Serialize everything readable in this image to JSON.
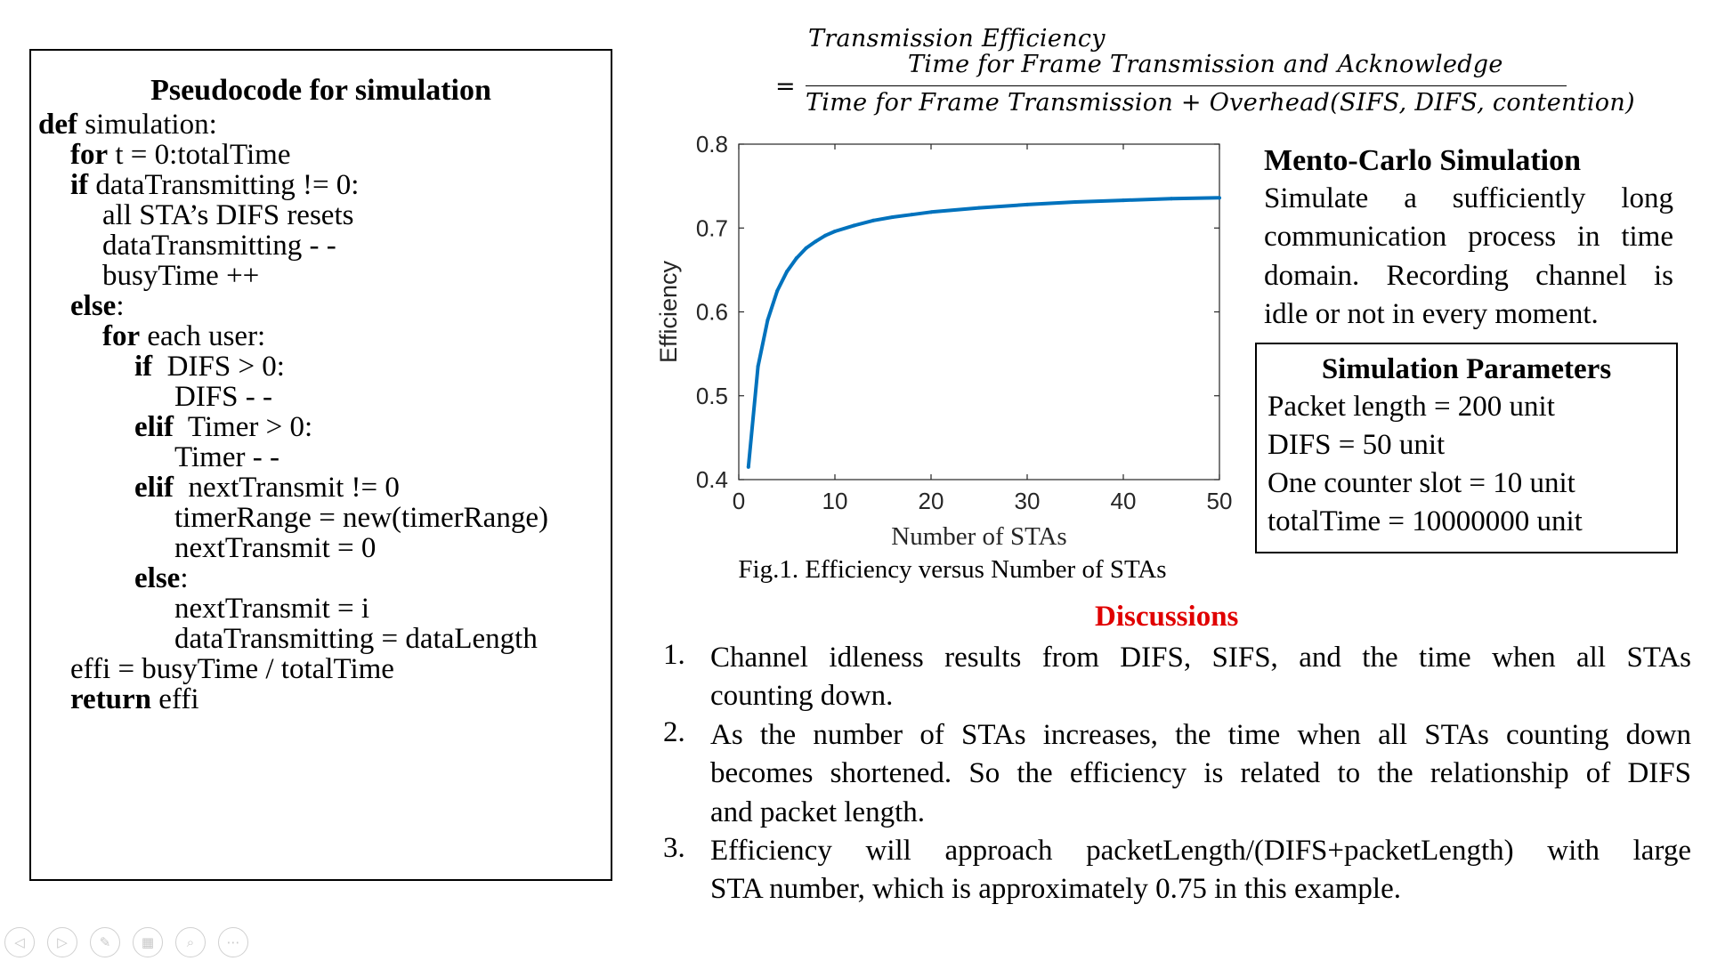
{
  "pseudocode": {
    "title": "Pseudocode for simulation",
    "lines": [
      {
        "kw": "def",
        "text": " simulation:"
      },
      {
        "kw": "for",
        "text": " t = 0:totalTime"
      },
      {
        "kw": "if",
        "text": " dataTransmitting != 0:"
      },
      {
        "kw": "",
        "text": "all STA’s DIFS resets"
      },
      {
        "kw": "",
        "text": "dataTransmitting - -"
      },
      {
        "kw": "",
        "text": "busyTime ++"
      },
      {
        "kw": "else",
        "text": ":"
      },
      {
        "kw": "for",
        "text": " each user:"
      },
      {
        "kw": "if",
        "text": "  DIFS > 0:"
      },
      {
        "kw": "",
        "text": "DIFS - -"
      },
      {
        "kw": "elif",
        "text": "  Timer > 0:"
      },
      {
        "kw": "",
        "text": "Timer - -"
      },
      {
        "kw": "elif",
        "text": "  nextTransmit != 0"
      },
      {
        "kw": "",
        "text": "timerRange = new(timerRange)"
      },
      {
        "kw": "",
        "text": "nextTransmit = 0"
      },
      {
        "kw": "else",
        "text": ":"
      },
      {
        "kw": "",
        "text": "nextTransmit = i"
      },
      {
        "kw": "",
        "text": "dataTransmitting = dataLength"
      },
      {
        "kw": "",
        "text": "effi = busyTime / totalTime"
      },
      {
        "kw": "return",
        "text": " effi"
      }
    ]
  },
  "formula": {
    "lhs": "Transmission Efficiency",
    "equals": "=",
    "numerator": "Time for Frame Transmission and Acknowledge",
    "denominator": "Time for Frame Transmission + Overhead(SIFS, DIFS, contention)"
  },
  "chart_data": {
    "type": "line",
    "xlabel": "Number of STAs",
    "ylabel": "Efficiency",
    "caption": "Fig.1. Efficiency versus Number of STAs",
    "xlim": [
      0,
      50
    ],
    "ylim": [
      0.4,
      0.8
    ],
    "xticks": [
      "0",
      "10",
      "20",
      "30",
      "40",
      "50"
    ],
    "yticks": [
      "0.4",
      "0.5",
      "0.6",
      "0.7",
      "0.8"
    ],
    "grid": false,
    "color": "#0072bd",
    "series": [
      {
        "x": [
          1,
          2,
          3,
          4,
          5,
          6,
          7,
          8,
          9,
          10,
          12,
          14,
          16,
          18,
          20,
          25,
          30,
          35,
          40,
          45,
          50
        ],
        "y": [
          0.415,
          0.535,
          0.59,
          0.625,
          0.648,
          0.664,
          0.676,
          0.684,
          0.691,
          0.696,
          0.703,
          0.709,
          0.713,
          0.716,
          0.719,
          0.724,
          0.728,
          0.731,
          0.733,
          0.735,
          0.736
        ]
      }
    ]
  },
  "montecarlo": {
    "title": "Mento-Carlo Simulation",
    "lines": [
      "Simulate a sufficiently long",
      "communication process in time",
      "domain. Recording channel is",
      "idle or not in every moment."
    ]
  },
  "params": {
    "title": "Simulation Parameters",
    "lines": [
      "Packet length = 200 unit",
      "DIFS = 50 unit",
      "One counter slot = 10 unit",
      "totalTime = 10000000 unit"
    ]
  },
  "discussions": {
    "title": "Discussions",
    "items": [
      {
        "num": "1.",
        "lines": [
          "Channel idleness results from DIFS, SIFS, and the time when all STAs",
          "counting down."
        ]
      },
      {
        "num": "2.",
        "lines": [
          "As the number of STAs increases,  the time when all STAs counting down",
          "becomes shortened. So the efficiency is related to the relationship of DIFS",
          "and packet length."
        ]
      },
      {
        "num": "3.",
        "lines": [
          "Efficiency will approach packetLength/(DIFS+packetLength) with large",
          "STA number, which is approximately 0.75 in this example."
        ]
      }
    ]
  },
  "toolbar": {
    "icons": [
      {
        "name": "previous-slide-icon",
        "glyph": "◁"
      },
      {
        "name": "next-slide-icon",
        "glyph": "▷"
      },
      {
        "name": "pen-icon",
        "glyph": "✎"
      },
      {
        "name": "slides-grid-icon",
        "glyph": "▦"
      },
      {
        "name": "zoom-icon",
        "glyph": "⌕"
      },
      {
        "name": "more-options-icon",
        "glyph": "⋯"
      }
    ]
  }
}
